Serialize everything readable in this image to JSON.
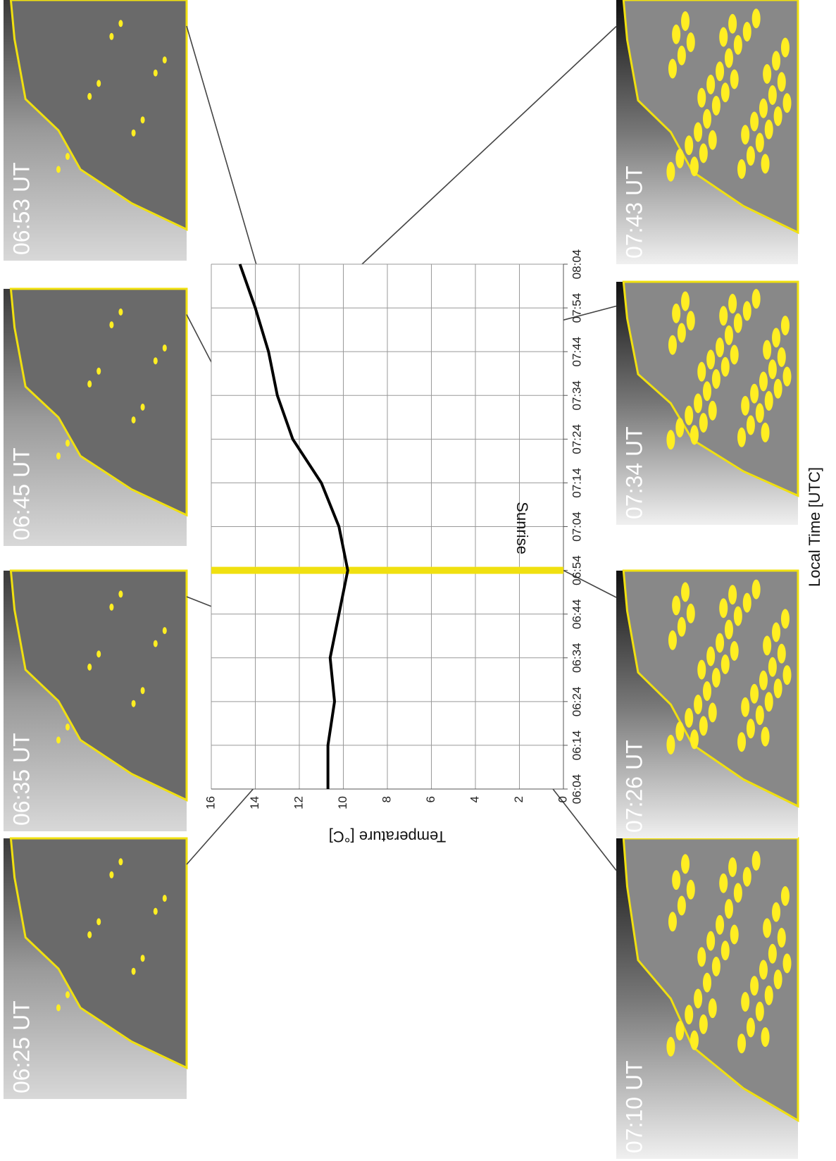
{
  "chart_data": {
    "type": "line",
    "x_label": "Local Time [UTC]",
    "y_label": "Temperature [°C]",
    "categories": [
      "06:04",
      "06:14",
      "06:24",
      "06:34",
      "06:44",
      "06:54",
      "07:04",
      "07:14",
      "07:24",
      "07:34",
      "07:44",
      "07:54",
      "08:04"
    ],
    "series": [
      {
        "color": "#000000",
        "values": [
          10.7,
          10.7,
          10.4,
          10.6,
          10.2,
          9.8,
          10.2,
          11.0,
          12.3,
          13.0,
          13.4,
          14.0,
          14.7
        ]
      }
    ],
    "ylim": [
      0,
      16
    ],
    "yticks": [
      0,
      2,
      4,
      6,
      8,
      10,
      12,
      14,
      16
    ],
    "grid": true,
    "annotations": [
      {
        "text": "Sunrise",
        "x": "06:54",
        "color": "#f0e010"
      }
    ]
  },
  "photos": [
    {
      "label": "06:25 UT"
    },
    {
      "label": "06:35 UT"
    },
    {
      "label": "06:45 UT"
    },
    {
      "label": "06:53 UT"
    },
    {
      "label": "07:10 UT"
    },
    {
      "label": "07:26 UT"
    },
    {
      "label": "07:34 UT"
    },
    {
      "label": "07:43 UT"
    }
  ]
}
